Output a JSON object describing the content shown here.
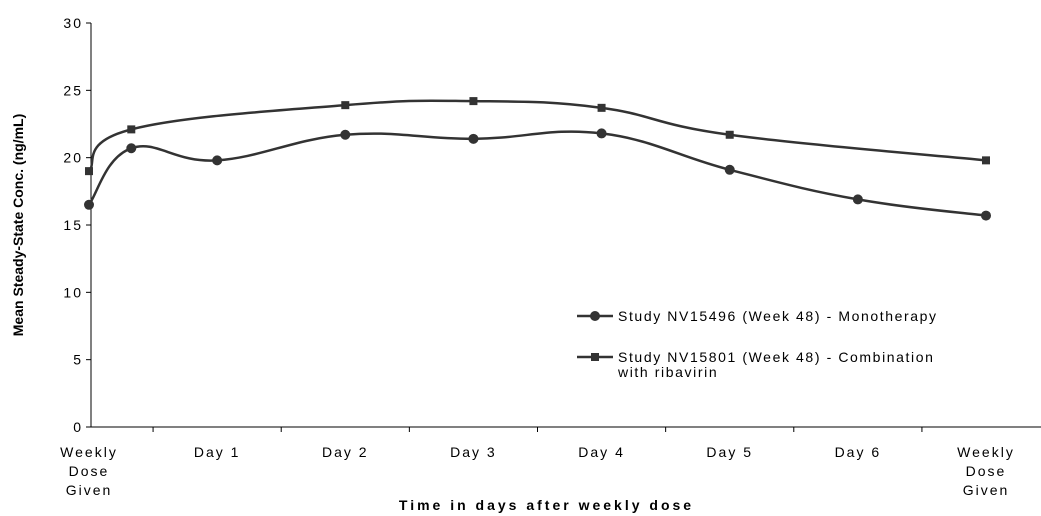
{
  "chart_data": {
    "type": "line",
    "xlabel": "Time in days after weekly dose",
    "ylabel": "Mean Steady-State Conc. (ng/mL)",
    "ylim": [
      0,
      30
    ],
    "yticks": [
      0,
      5,
      10,
      15,
      20,
      25,
      30
    ],
    "x_ticks": [
      {
        "x": 0,
        "lines": [
          "Weekly",
          "Dose",
          "Given"
        ]
      },
      {
        "x": 1,
        "lines": [
          "Day 1"
        ]
      },
      {
        "x": 2,
        "lines": [
          "Day 2"
        ]
      },
      {
        "x": 3,
        "lines": [
          "Day 3"
        ]
      },
      {
        "x": 4,
        "lines": [
          "Day 4"
        ]
      },
      {
        "x": 5,
        "lines": [
          "Day 5"
        ]
      },
      {
        "x": 6,
        "lines": [
          "Day 6"
        ]
      },
      {
        "x": 7,
        "lines": [
          "Weekly",
          "Dose",
          "Given"
        ]
      }
    ],
    "xlim": [
      0,
      7
    ],
    "grid": false,
    "legend_position": "right",
    "series": [
      {
        "name": "Study NV15496 (Week 48) - Monotherapy",
        "legend_lines": [
          "Study NV15496 (Week 48) - Monotherapy"
        ],
        "marker": "circle",
        "color": "#333333",
        "points": [
          [
            0,
            16.5
          ],
          [
            0.33,
            20.7
          ],
          [
            1,
            19.8
          ],
          [
            2,
            21.7
          ],
          [
            3,
            21.4
          ],
          [
            4,
            21.8
          ],
          [
            5,
            19.1
          ],
          [
            6,
            16.9
          ],
          [
            7,
            15.7
          ]
        ]
      },
      {
        "name": "Study NV15801 (Week 48) - Combination with ribavirin",
        "legend_lines": [
          "Study NV15801 (Week 48) - Combination",
          "with ribavirin"
        ],
        "marker": "square",
        "color": "#333333",
        "points": [
          [
            0,
            19.0
          ],
          [
            0.33,
            22.1
          ],
          [
            2,
            23.9
          ],
          [
            3,
            24.2
          ],
          [
            4,
            23.7
          ],
          [
            5,
            21.7
          ],
          [
            7,
            19.8
          ]
        ]
      }
    ]
  }
}
